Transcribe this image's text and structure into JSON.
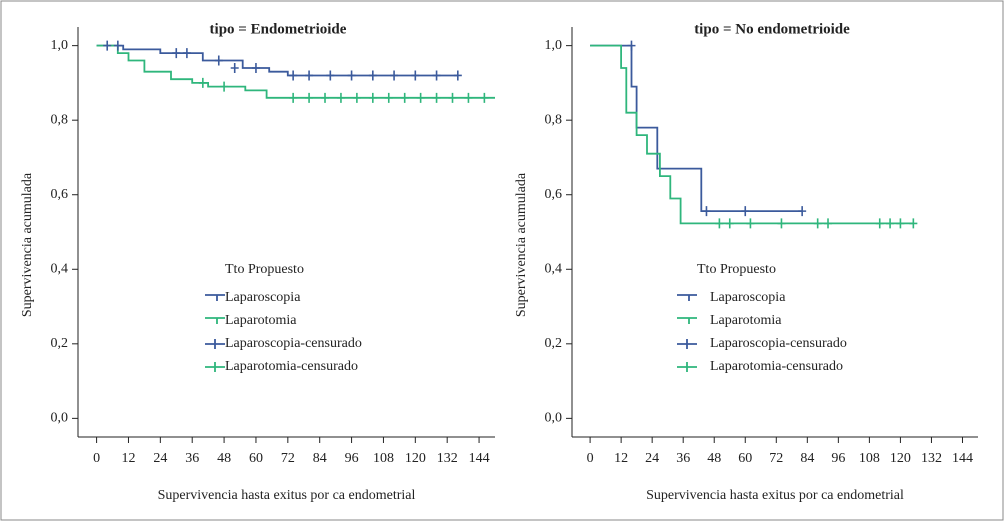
{
  "chart_data": [
    {
      "type": "line",
      "title": "tipo = Endometrioide",
      "x_label": "Supervivencia hasta exitus por ca endometrial",
      "y_label": "Supervivencia acumulada",
      "legend_title": "Tto Propuesto",
      "legend": "center",
      "xlim": [
        -7,
        150
      ],
      "ylim": [
        -0.05,
        1.05
      ],
      "xticks": [
        0,
        12,
        24,
        36,
        48,
        60,
        72,
        84,
        96,
        108,
        120,
        132,
        144
      ],
      "yticks": [
        {
          "value": 0,
          "label": "0,0"
        },
        {
          "value": 0.2,
          "label": "0,2"
        },
        {
          "value": 0.4,
          "label": "0,4"
        },
        {
          "value": 0.6,
          "label": "0,6"
        },
        {
          "value": 0.8,
          "label": "0,8"
        },
        {
          "value": 1,
          "label": "1,0"
        }
      ],
      "series": [
        {
          "name": "Laparoscopia",
          "color": "#3b5a9c",
          "x": [
            0,
            10,
            10,
            24,
            24,
            40,
            40,
            55,
            55,
            65,
            65,
            72,
            72,
            136
          ],
          "values": [
            1.0,
            1.0,
            0.99,
            0.99,
            0.98,
            0.98,
            0.96,
            0.96,
            0.94,
            0.94,
            0.93,
            0.93,
            0.92,
            0.92
          ]
        },
        {
          "name": "Laparotomia",
          "color": "#2fb67c",
          "x": [
            0,
            8,
            8,
            12,
            12,
            18,
            18,
            28,
            28,
            36,
            36,
            42,
            42,
            56,
            56,
            64,
            64,
            70,
            70,
            150
          ],
          "values": [
            1.0,
            1.0,
            0.98,
            0.98,
            0.96,
            0.96,
            0.93,
            0.93,
            0.91,
            0.91,
            0.9,
            0.9,
            0.89,
            0.89,
            0.88,
            0.88,
            0.86,
            0.86,
            0.86,
            0.86
          ]
        },
        {
          "name": "Laparoscopia-censurado",
          "color": "#3b5a9c",
          "marker": "+",
          "x": [
            4,
            8,
            30,
            34,
            46,
            52,
            60,
            74,
            80,
            88,
            96,
            104,
            112,
            120,
            128,
            136
          ],
          "values": [
            1.0,
            1.0,
            0.98,
            0.98,
            0.96,
            0.94,
            0.94,
            0.92,
            0.92,
            0.92,
            0.92,
            0.92,
            0.92,
            0.92,
            0.92,
            0.92
          ]
        },
        {
          "name": "Laparotomia-censurado",
          "color": "#2fb67c",
          "marker": "+",
          "x": [
            40,
            48,
            74,
            80,
            86,
            92,
            98,
            104,
            110,
            116,
            122,
            128,
            134,
            140,
            146
          ],
          "values": [
            0.9,
            0.89,
            0.86,
            0.86,
            0.86,
            0.86,
            0.86,
            0.86,
            0.86,
            0.86,
            0.86,
            0.86,
            0.86,
            0.86,
            0.86
          ]
        }
      ]
    },
    {
      "type": "line",
      "title": "tipo = No endometrioide",
      "x_label": "Supervivencia hasta exitus por ca endometrial",
      "y_label": "Supervivencia acumulada",
      "legend_title": "Tto Propuesto",
      "legend": "center",
      "xlim": [
        -7,
        150
      ],
      "ylim": [
        -0.05,
        1.05
      ],
      "xticks": [
        0,
        12,
        24,
        36,
        48,
        60,
        72,
        84,
        96,
        108,
        120,
        132,
        144
      ],
      "yticks": [
        {
          "value": 0,
          "label": "0,0"
        },
        {
          "value": 0.2,
          "label": "0,2"
        },
        {
          "value": 0.4,
          "label": "0,4"
        },
        {
          "value": 0.6,
          "label": "0,6"
        },
        {
          "value": 0.8,
          "label": "0,8"
        },
        {
          "value": 1,
          "label": "1,0"
        }
      ],
      "series": [
        {
          "name": "Laparoscopia",
          "color": "#3b5a9c",
          "x": [
            0,
            16,
            16,
            18,
            18,
            26,
            26,
            43,
            43,
            82
          ],
          "values": [
            1.0,
            1.0,
            0.89,
            0.89,
            0.78,
            0.78,
            0.67,
            0.67,
            0.556,
            0.556
          ]
        },
        {
          "name": "Laparotomia",
          "color": "#2fb67c",
          "x": [
            0,
            12,
            12,
            14,
            14,
            18,
            18,
            22,
            22,
            27,
            27,
            31,
            31,
            35,
            35,
            125
          ],
          "values": [
            1.0,
            1.0,
            0.94,
            0.94,
            0.82,
            0.82,
            0.76,
            0.76,
            0.71,
            0.71,
            0.65,
            0.65,
            0.59,
            0.59,
            0.523,
            0.523
          ]
        },
        {
          "name": "Laparoscopia-censurado",
          "color": "#3b5a9c",
          "marker": "+",
          "x": [
            16,
            45,
            60,
            82
          ],
          "values": [
            1.0,
            0.556,
            0.556,
            0.556
          ]
        },
        {
          "name": "Laparotomia-censurado",
          "color": "#2fb67c",
          "marker": "+",
          "x": [
            50,
            54,
            62,
            74,
            88,
            92,
            112,
            116,
            120,
            125
          ],
          "values": [
            0.523,
            0.523,
            0.523,
            0.523,
            0.523,
            0.523,
            0.523,
            0.523,
            0.523,
            0.523
          ]
        }
      ]
    }
  ]
}
